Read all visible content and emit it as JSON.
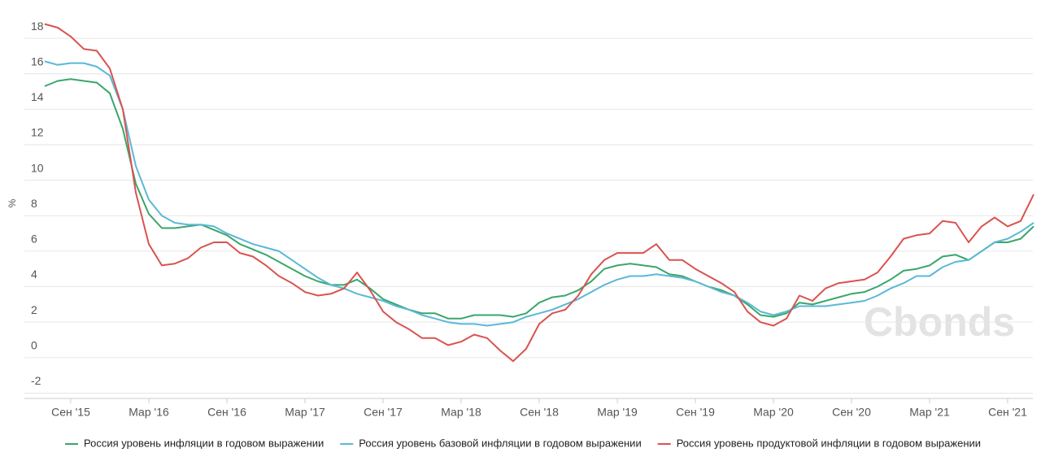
{
  "chart_data": {
    "type": "line",
    "y_label": "%",
    "watermark": "Cbonds",
    "categories": [
      null,
      null,
      "Сен '15",
      null,
      null,
      null,
      null,
      null,
      "Мар '16",
      null,
      null,
      null,
      null,
      null,
      "Сен '16",
      null,
      null,
      null,
      null,
      null,
      "Мар '17",
      null,
      null,
      null,
      null,
      null,
      "Сен '17",
      null,
      null,
      null,
      null,
      null,
      "Мар '18",
      null,
      null,
      null,
      null,
      null,
      "Сен '18",
      null,
      null,
      null,
      null,
      null,
      "Мар '19",
      null,
      null,
      null,
      null,
      null,
      "Сен '19",
      null,
      null,
      null,
      null,
      null,
      "Мар '20",
      null,
      null,
      null,
      null,
      null,
      "Сен '20",
      null,
      null,
      null,
      null,
      null,
      "Мар '21",
      null,
      null,
      null,
      null,
      null,
      "Сен '21",
      null,
      null
    ],
    "ylim": [
      -2.3,
      19.7
    ],
    "yticks": [
      -2,
      0,
      2,
      4,
      6,
      8,
      10,
      12,
      14,
      16,
      18
    ],
    "grid": true,
    "legend": "bottom",
    "series": [
      {
        "name": "Россия уровень инфляции в годовом выражении",
        "color": "#3aa66a",
        "values": [
          15.3,
          15.6,
          15.7,
          15.6,
          15.5,
          14.9,
          12.9,
          9.8,
          8.1,
          7.3,
          7.3,
          7.4,
          7.5,
          7.2,
          6.9,
          6.4,
          6.1,
          5.8,
          5.4,
          5.0,
          4.6,
          4.3,
          4.1,
          4.1,
          4.4,
          3.9,
          3.3,
          3.0,
          2.7,
          2.5,
          2.5,
          2.2,
          2.2,
          2.4,
          2.4,
          2.4,
          2.3,
          2.5,
          3.1,
          3.4,
          3.5,
          3.8,
          4.3,
          5.0,
          5.2,
          5.3,
          5.2,
          5.1,
          4.7,
          4.6,
          4.3,
          4.0,
          3.8,
          3.5,
          3.0,
          2.4,
          2.3,
          2.5,
          3.1,
          3.0,
          3.2,
          3.4,
          3.6,
          3.7,
          4.0,
          4.4,
          4.9,
          5.0,
          5.2,
          5.7,
          5.8,
          5.5,
          6.0,
          6.5,
          6.5,
          6.7,
          7.4
        ]
      },
      {
        "name": "Россия уровень базовой инфляции в годовом выражении",
        "color": "#5bb8d6",
        "values": [
          16.7,
          16.5,
          16.6,
          16.6,
          16.4,
          15.9,
          14.0,
          10.8,
          8.9,
          8.0,
          7.6,
          7.5,
          7.5,
          7.4,
          7.0,
          6.7,
          6.4,
          6.2,
          6.0,
          5.5,
          5.0,
          4.5,
          4.1,
          3.9,
          3.6,
          3.4,
          3.2,
          2.9,
          2.7,
          2.4,
          2.2,
          2.0,
          1.9,
          1.9,
          1.8,
          1.9,
          2.0,
          2.3,
          2.5,
          2.7,
          3.0,
          3.3,
          3.7,
          4.1,
          4.4,
          4.6,
          4.6,
          4.7,
          4.6,
          4.5,
          4.3,
          4.0,
          3.7,
          3.5,
          3.1,
          2.6,
          2.4,
          2.6,
          2.9,
          2.9,
          2.9,
          3.0,
          3.1,
          3.2,
          3.5,
          3.9,
          4.2,
          4.6,
          4.6,
          5.1,
          5.4,
          5.5,
          6.0,
          6.5,
          6.7,
          7.1,
          7.6
        ]
      },
      {
        "name": "Россия уровень продуктовой инфляции в годовом выражении",
        "color": "#d9534f",
        "values": [
          18.8,
          18.6,
          18.1,
          17.4,
          17.3,
          16.3,
          14.0,
          9.3,
          6.4,
          5.2,
          5.3,
          5.6,
          6.2,
          6.5,
          6.5,
          5.9,
          5.7,
          5.2,
          4.6,
          4.2,
          3.7,
          3.5,
          3.6,
          3.9,
          4.8,
          3.8,
          2.6,
          2.0,
          1.6,
          1.1,
          1.1,
          0.7,
          0.9,
          1.3,
          1.1,
          0.4,
          -0.2,
          0.5,
          1.9,
          2.5,
          2.7,
          3.5,
          4.7,
          5.5,
          5.9,
          5.9,
          5.9,
          6.4,
          5.5,
          5.5,
          5.0,
          4.6,
          4.2,
          3.7,
          2.6,
          2.0,
          1.8,
          2.2,
          3.5,
          3.2,
          3.9,
          4.2,
          4.3,
          4.4,
          4.8,
          5.7,
          6.7,
          6.9,
          7.0,
          7.7,
          7.6,
          6.5,
          7.4,
          7.9,
          7.4,
          7.7,
          9.2
        ]
      }
    ]
  }
}
